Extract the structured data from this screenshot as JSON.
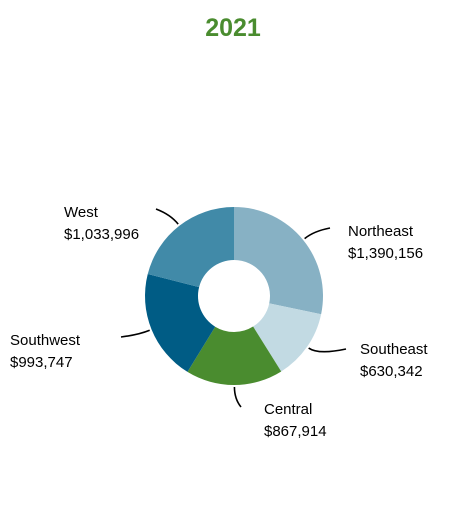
{
  "chart_data": {
    "type": "pie",
    "variant": "donut",
    "title": "2021",
    "title_color": "#4a8c2f",
    "categories": [
      "Northeast",
      "Southeast",
      "Central",
      "Southwest",
      "West"
    ],
    "values": [
      1390156,
      630342,
      867914,
      993747,
      1033996
    ],
    "value_labels": [
      "$1,390,156",
      "$630,342",
      "$867,914",
      "$993,747",
      "$1,033,996"
    ],
    "colors": [
      "#87b1c4",
      "#c2dae3",
      "#4a8c2f",
      "#005c85",
      "#418aa8"
    ],
    "start_angle_deg": 0,
    "direction": "clockwise",
    "legend": "none"
  }
}
